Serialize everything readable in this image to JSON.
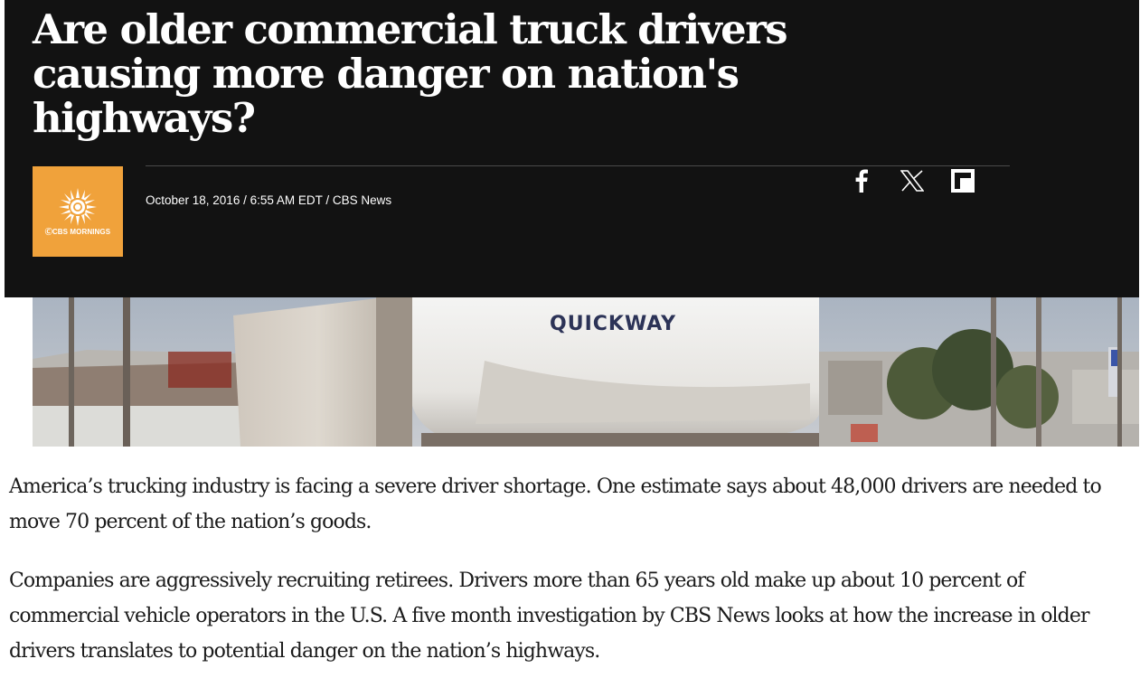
{
  "article": {
    "headline": "Are older commercial truck drivers causing more danger on nation's highways?",
    "byline": "October 18, 2016 / 6:55 AM EDT / CBS News",
    "show_logo": {
      "icon": "sun-logo-icon",
      "text": "ⒸCBS MORNINGS",
      "color": "#f0a23b"
    },
    "share": [
      {
        "icon": "facebook-icon"
      },
      {
        "icon": "x-twitter-icon"
      },
      {
        "icon": "flipboard-icon"
      }
    ],
    "image": {
      "truck_text": "QUICKWAY"
    },
    "paragraphs": [
      "America’s trucking industry is facing a severe driver shortage. One estimate says about 48,000 drivers are needed to move 70 percent of the nation’s goods.",
      "Companies are aggressively recruiting retirees. Drivers more than 65 years old make up about 10 percent of commercial vehicle operators in the U.S. A five month investigation by CBS News looks at how the increase in older drivers translates to potential danger on the nation’s highways."
    ]
  },
  "colors": {
    "hero_background": "#121212",
    "headline_text": "#ffffff",
    "body_text": "#1a1a1a"
  }
}
